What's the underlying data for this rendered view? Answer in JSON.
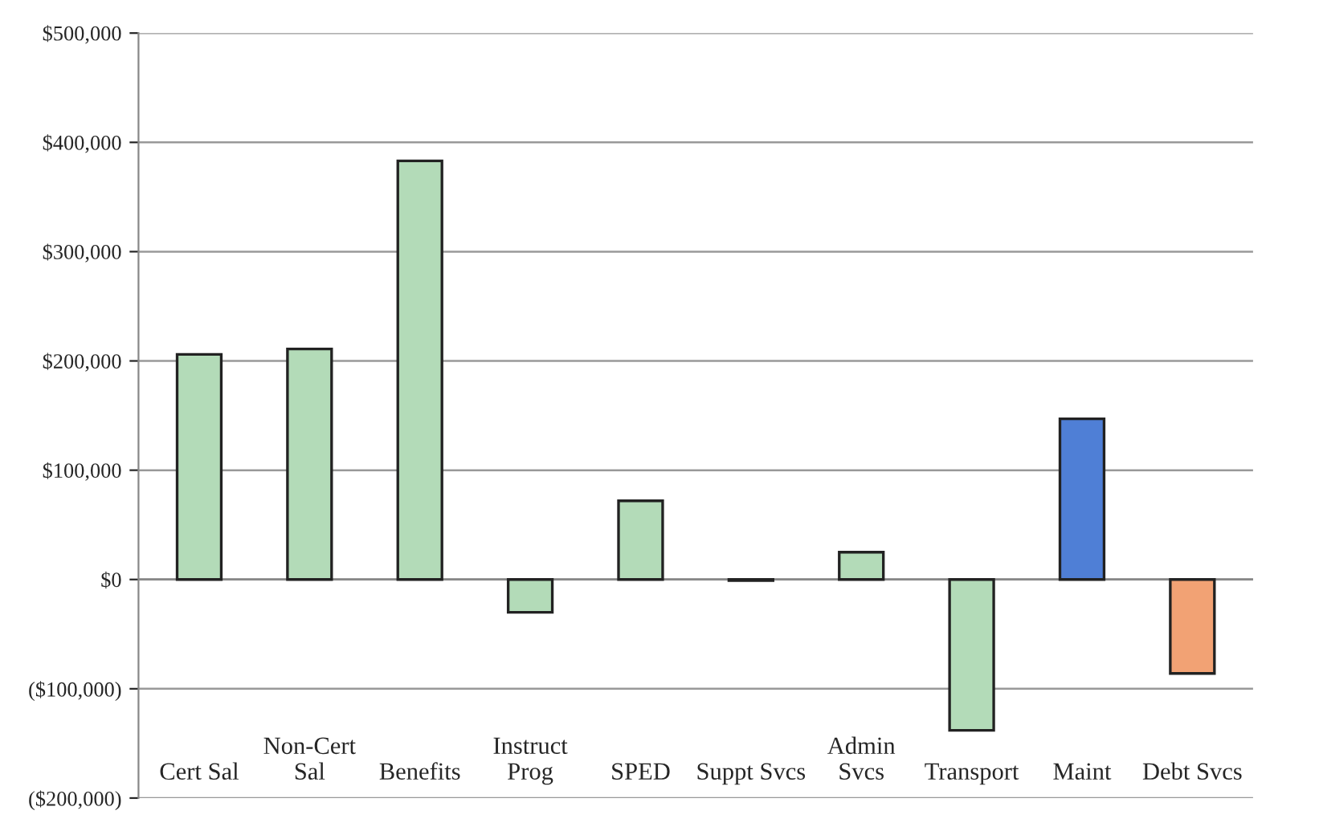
{
  "chart_data": {
    "type": "bar",
    "categories": [
      "Cert Sal",
      "Non-Cert\nSal",
      "Benefits",
      "Instruct\nProg",
      "SPED",
      "Suppt Svcs",
      "Admin\nSvcs",
      "Transport",
      "Maint",
      "Debt Svcs"
    ],
    "values": [
      206000,
      211000,
      383000,
      -30000,
      72000,
      -1000,
      25000,
      -138000,
      147000,
      -86000
    ],
    "colors": [
      "#b3dbb8",
      "#b3dbb8",
      "#b3dbb8",
      "#b3dbb8",
      "#b3dbb8",
      "#b3dbb8",
      "#b3dbb8",
      "#b3dbb8",
      "#4f7fd6",
      "#f2a274"
    ],
    "ylim": [
      -200000,
      500000
    ],
    "yticks": [
      {
        "value": -200000,
        "label": "($200,000)"
      },
      {
        "value": -100000,
        "label": "($100,000)"
      },
      {
        "value": 0,
        "label": "$0"
      },
      {
        "value": 100000,
        "label": "$100,000"
      },
      {
        "value": 200000,
        "label": "$200,000"
      },
      {
        "value": 300000,
        "label": "$300,000"
      },
      {
        "value": 400000,
        "label": "$400,000"
      },
      {
        "value": 500000,
        "label": "$500,000"
      }
    ],
    "grid": "y"
  }
}
